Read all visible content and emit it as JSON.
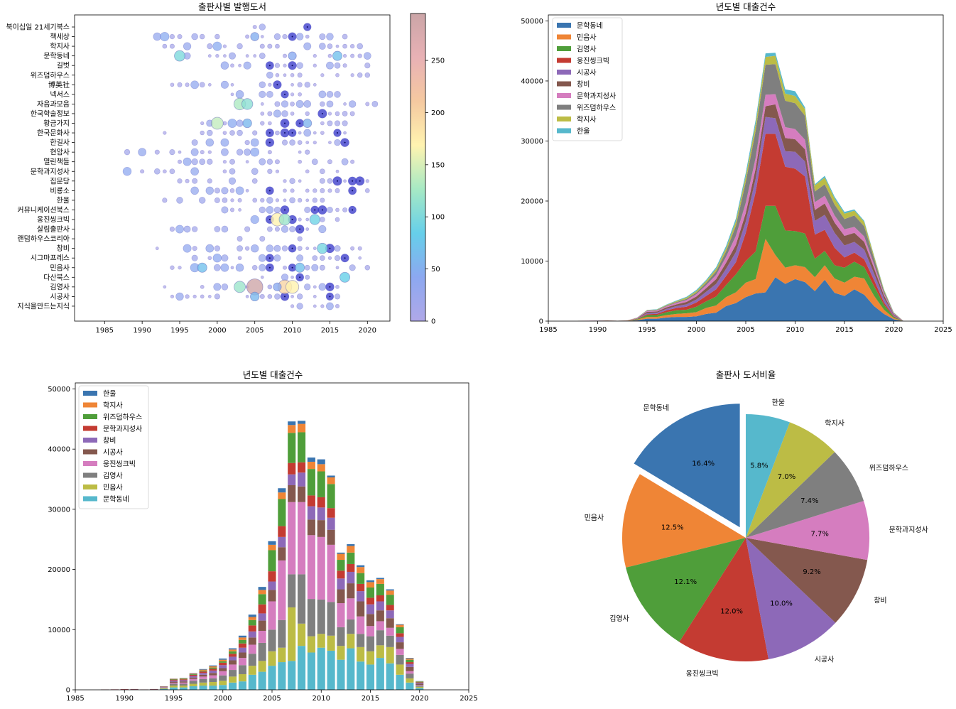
{
  "colors": {
    "tab10": [
      "#3a75b0",
      "#ef8536",
      "#4f9e3a",
      "#c43b32",
      "#8d69b8",
      "#84584e",
      "#d57dbf",
      "#7f7f7f",
      "#bcbc45",
      "#56b8cc"
    ],
    "colormap": [
      "#b0a8e8",
      "#8ca8f0",
      "#66cfea",
      "#a6e9c4",
      "#fff3b0",
      "#f5c9a0",
      "#e8b1b5",
      "#cba5a7"
    ]
  },
  "chart_data": [
    {
      "id": "scatter",
      "type": "scatter",
      "title": "출판사별 발행도서",
      "xlim": [
        1981,
        2023
      ],
      "xticks": [
        1985,
        1990,
        1995,
        2000,
        2005,
        2010,
        2015,
        2020
      ],
      "categories": [
        "북이십일 21세기북스",
        "책세상",
        "학지사",
        "문학동네",
        "길벗",
        "위즈덤하우스",
        "博英社",
        "넥서스",
        "자음과모음",
        "한국학술정보",
        "황금가지",
        "한국문화사",
        "한길사",
        "현암사",
        "열린책들",
        "문학과지성사",
        "집문당",
        "비룡소",
        "한울",
        "커뮤니케이션북스",
        "웅진씽크빅",
        "살림출판사",
        "랜덤하우스코리아",
        "창비",
        "시그마프레스",
        "민음사",
        "다산북스",
        "김영사",
        "시공사",
        "지식을만드는지식"
      ],
      "bubbles": [
        {
          "publisher": "문학동네",
          "year": 1995,
          "count": 100
        },
        {
          "publisher": "황금가지",
          "year": 2000,
          "count": 140
        },
        {
          "publisher": "자음과모음",
          "year": 2003,
          "count": 130
        },
        {
          "publisher": "자음과모음",
          "year": 2004,
          "count": 110
        },
        {
          "publisher": "김영사",
          "year": 2005,
          "count": 290
        },
        {
          "publisher": "김영사",
          "year": 2009,
          "count": 200
        },
        {
          "publisher": "김영사",
          "year": 2010,
          "count": 170
        },
        {
          "publisher": "김영사",
          "year": 2003,
          "count": 120
        },
        {
          "publisher": "웅진씽크빅",
          "year": 2008,
          "count": 170
        },
        {
          "publisher": "웅진씽크빅",
          "year": 2009,
          "count": 120
        },
        {
          "publisher": "웅진씽크빅",
          "year": 2013,
          "count": 90
        },
        {
          "publisher": "창비",
          "year": 2014,
          "count": 95
        },
        {
          "publisher": "다산북스",
          "year": 2017,
          "count": 85
        },
        {
          "publisher": "민음사",
          "year": 1998,
          "count": 70
        },
        {
          "publisher": "민음사",
          "year": 2011,
          "count": 70
        },
        {
          "publisher": "문학동네",
          "year": 2016,
          "count": 70
        },
        {
          "publisher": "시공사",
          "year": 2005,
          "count": 60
        },
        {
          "publisher": "황금가지",
          "year": 2004,
          "count": 60
        },
        {
          "publisher": "황금가지",
          "year": 2012,
          "count": 55
        },
        {
          "publisher": "책세상",
          "year": 2005,
          "count": 50
        },
        {
          "publisher": "문학동네",
          "year": 2010,
          "count": 45
        },
        {
          "publisher": "김영사",
          "year": 2008,
          "count": 45
        }
      ],
      "colorbar_ticks": [
        0,
        50,
        100,
        150,
        200,
        250
      ],
      "colorbar_range": [
        0,
        295
      ]
    },
    {
      "id": "area",
      "type": "area",
      "title": "년도별 대출건수",
      "xlim": [
        1985,
        2025
      ],
      "xticks": [
        1985,
        1990,
        1995,
        2000,
        2005,
        2010,
        2015,
        2020,
        2025
      ],
      "ylim": [
        0,
        51000
      ],
      "yticks": [
        0,
        10000,
        20000,
        30000,
        40000,
        50000
      ],
      "x": [
        1988,
        1989,
        1990,
        1991,
        1992,
        1993,
        1994,
        1995,
        1996,
        1997,
        1998,
        1999,
        2000,
        2001,
        2002,
        2003,
        2004,
        2005,
        2006,
        2007,
        2008,
        2009,
        2010,
        2011,
        2012,
        2013,
        2014,
        2015,
        2016,
        2017,
        2018,
        2019,
        2020,
        2021
      ],
      "series": [
        {
          "name": "문학동네",
          "values": [
            20,
            30,
            40,
            50,
            20,
            50,
            150,
            400,
            400,
            600,
            700,
            700,
            800,
            1200,
            1400,
            2500,
            3000,
            4000,
            4600,
            4800,
            7300,
            6200,
            7000,
            6500,
            5000,
            6900,
            4700,
            4200,
            5300,
            4400,
            2500,
            1200,
            300,
            0
          ]
        },
        {
          "name": "민음사",
          "values": [
            10,
            10,
            20,
            20,
            10,
            20,
            100,
            300,
            300,
            400,
            500,
            600,
            700,
            1000,
            1200,
            1500,
            1800,
            2400,
            2400,
            8900,
            3700,
            2700,
            2300,
            2500,
            2300,
            2400,
            2400,
            2200,
            2100,
            2700,
            1700,
            700,
            200,
            0
          ]
        },
        {
          "name": "김영사",
          "values": [
            10,
            10,
            10,
            20,
            10,
            20,
            100,
            300,
            300,
            500,
            600,
            600,
            900,
            1100,
            1500,
            2000,
            3000,
            3600,
            4600,
            5500,
            8200,
            6200,
            5700,
            5600,
            3100,
            2400,
            2200,
            2500,
            2500,
            1900,
            1600,
            800,
            200,
            0
          ]
        },
        {
          "name": "웅진씽크빅",
          "values": [
            5,
            5,
            10,
            10,
            5,
            10,
            50,
            150,
            200,
            300,
            400,
            500,
            700,
            900,
            1200,
            1500,
            2000,
            4700,
            9900,
            12000,
            12000,
            10600,
            10400,
            9500,
            4000,
            3500,
            2900,
            1700,
            1500,
            1300,
            1000,
            400,
            100,
            0
          ]
        },
        {
          "name": "시공사",
          "values": [
            5,
            5,
            10,
            10,
            5,
            10,
            50,
            200,
            200,
            250,
            300,
            400,
            500,
            700,
            900,
            1200,
            1700,
            1900,
            2200,
            2800,
            2600,
            2600,
            2800,
            2500,
            2300,
            2500,
            2500,
            2000,
            1800,
            1600,
            1100,
            700,
            200,
            0
          ]
        },
        {
          "name": "창비",
          "values": [
            5,
            5,
            5,
            10,
            5,
            10,
            50,
            200,
            200,
            250,
            300,
            400,
            500,
            600,
            800,
            1000,
            1200,
            1400,
            1700,
            1800,
            2300,
            2200,
            2100,
            2000,
            1800,
            1900,
            1700,
            1600,
            1500,
            1300,
            900,
            500,
            150,
            0
          ]
        },
        {
          "name": "문학과지성사",
          "values": [
            5,
            5,
            5,
            10,
            5,
            10,
            50,
            150,
            150,
            200,
            250,
            300,
            400,
            500,
            700,
            1000,
            1500,
            1700,
            1800,
            1900,
            1700,
            1800,
            1700,
            1600,
            1300,
            1300,
            1200,
            1100,
            1000,
            900,
            600,
            300,
            100,
            0
          ]
        },
        {
          "name": "위즈덤하우스",
          "values": [
            0,
            0,
            0,
            0,
            0,
            0,
            20,
            80,
            100,
            100,
            150,
            200,
            250,
            400,
            600,
            900,
            1700,
            3500,
            4500,
            5000,
            5000,
            4400,
            4300,
            4000,
            1800,
            1900,
            1800,
            1700,
            1900,
            1700,
            1000,
            400,
            100,
            0
          ]
        },
        {
          "name": "학지사",
          "values": [
            0,
            0,
            0,
            0,
            0,
            0,
            20,
            50,
            80,
            100,
            150,
            200,
            250,
            300,
            400,
            500,
            700,
            900,
            1100,
            1300,
            1400,
            1200,
            1200,
            1100,
            1000,
            1100,
            1000,
            900,
            800,
            700,
            400,
            200,
            50,
            0
          ]
        },
        {
          "name": "한울",
          "values": [
            0,
            0,
            0,
            0,
            0,
            0,
            10,
            30,
            50,
            80,
            100,
            150,
            200,
            200,
            300,
            400,
            500,
            600,
            700,
            600,
            500,
            700,
            800,
            300,
            200,
            300,
            300,
            300,
            200,
            200,
            100,
            100,
            50,
            0
          ]
        }
      ]
    },
    {
      "id": "bar",
      "type": "bar",
      "title": "년도별 대출건수",
      "xlim": [
        1985,
        2025
      ],
      "xticks": [
        1985,
        1990,
        1995,
        2000,
        2005,
        2010,
        2015,
        2020,
        2025
      ],
      "ylim": [
        0,
        51000
      ],
      "yticks": [
        0,
        10000,
        20000,
        30000,
        40000,
        50000
      ],
      "stack_order": [
        "문학동네",
        "민음사",
        "김영사",
        "웅진씽크빅",
        "시공사",
        "창비",
        "문학과지성사",
        "위즈덤하우스",
        "학지사",
        "한울"
      ],
      "legend": [
        "한울",
        "학지사",
        "위즈덤하우스",
        "문학과지성사",
        "창비",
        "시공사",
        "웅진씽크빅",
        "김영사",
        "민음사",
        "문학동네"
      ],
      "note": "same yearly data as the area chart, shown as stacked bars"
    },
    {
      "id": "pie",
      "type": "pie",
      "title": "출판사 도서비율",
      "labels": [
        "문학동네",
        "민음사",
        "김영사",
        "웅진씽크빅",
        "시공사",
        "창비",
        "문학과지성사",
        "위즈덤하우스",
        "학지사",
        "한울"
      ],
      "values": [
        16.4,
        12.5,
        12.1,
        12.0,
        10.0,
        9.2,
        7.7,
        7.4,
        7.0,
        5.8
      ],
      "pct_labels": [
        "16.4%",
        "12.5%",
        "12.1%",
        "12.0%",
        "10.0%",
        "9.2%",
        "7.7%",
        "7.4%",
        "7.0%",
        "5.8%"
      ],
      "explode": "문학동네",
      "start": "top, clockwise"
    }
  ]
}
